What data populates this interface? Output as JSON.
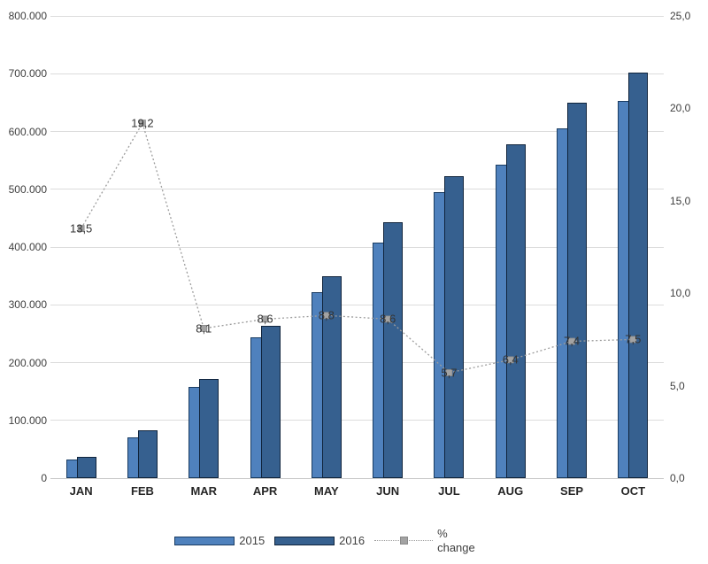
{
  "chart_data": {
    "type": "bar",
    "subtype": "combo-bar-line",
    "title": "",
    "xlabel": "",
    "ylabel": "",
    "grid": true,
    "categories": [
      "JAN",
      "FEB",
      "MAR",
      "APR",
      "MAY",
      "JUN",
      "JUL",
      "AUG",
      "SEP",
      "OCT"
    ],
    "series": [
      {
        "name": "2015",
        "type": "bar",
        "axis": "left",
        "color": "#4f81bd",
        "border_color": "#1a3c62",
        "values": [
          32000,
          70000,
          158000,
          243000,
          322000,
          408000,
          495000,
          543000,
          605000,
          653000
        ]
      },
      {
        "name": "2016",
        "type": "bar",
        "axis": "left",
        "color": "#36608f",
        "border_color": "#10243c",
        "values": [
          36300,
          83400,
          171000,
          264000,
          350000,
          443000,
          523000,
          578000,
          650000,
          702000
        ]
      },
      {
        "name": "% change",
        "type": "line",
        "axis": "right",
        "color": "#9c9c9c",
        "marker": "square",
        "marker_color": "#a3a3a3",
        "marker_border": "#8a8a8a",
        "values": [
          13.5,
          19.2,
          8.1,
          8.6,
          8.8,
          8.6,
          5.7,
          6.4,
          7.4,
          7.5
        ],
        "labels": [
          "13,5",
          "19,2",
          "8,1",
          "8,6",
          "8,8",
          "8,6",
          "5,7",
          "6,4",
          "7,4",
          "7,5"
        ]
      }
    ],
    "left_axis": {
      "min": 0,
      "max": 800000,
      "step": 100000,
      "tick_labels": [
        "0",
        "100.000",
        "200.000",
        "300.000",
        "400.000",
        "500.000",
        "600.000",
        "700.000",
        "800.000"
      ]
    },
    "right_axis": {
      "min": 0,
      "max": 25,
      "step": 5,
      "tick_labels": [
        "0,0",
        "5,0",
        "10,0",
        "15,0",
        "20,0",
        "25,0"
      ]
    },
    "legend_position": "bottom"
  },
  "legend": {
    "label_2015": "2015",
    "label_2016": "2016",
    "pct_line1": "%",
    "pct_line2": "change"
  },
  "colors": {
    "gridline": "#dcdcdc",
    "baseline": "#c9c9c9",
    "tick_text": "#3f3f3f",
    "month_text": "#262626",
    "data_label_text": "#333333"
  }
}
